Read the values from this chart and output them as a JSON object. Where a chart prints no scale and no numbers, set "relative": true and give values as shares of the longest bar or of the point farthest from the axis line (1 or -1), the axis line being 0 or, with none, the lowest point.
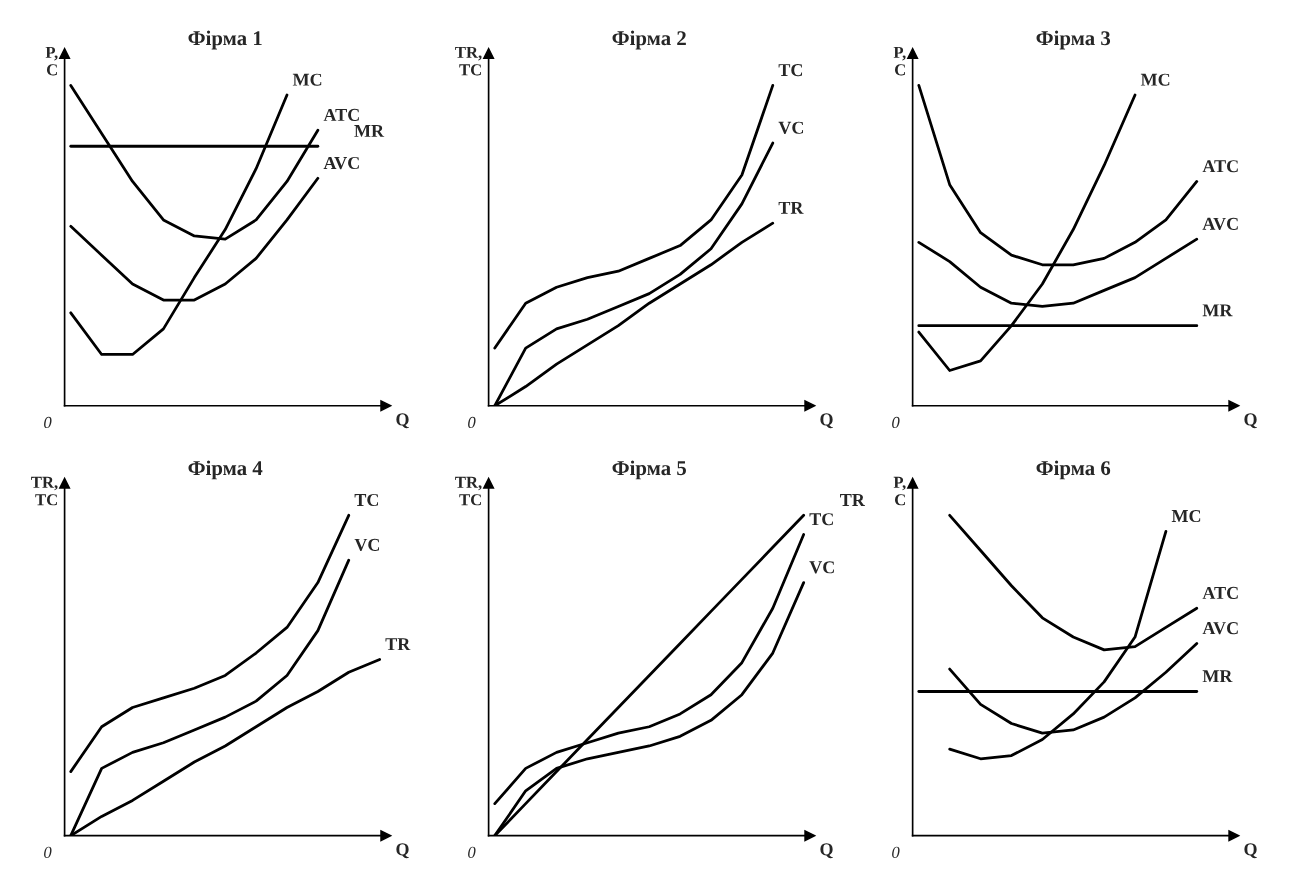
{
  "chart_data": [
    {
      "type": "line",
      "title": "Фірма 1",
      "ylabel": "P,\nC",
      "xlabel": "Q",
      "annotations": [
        "0"
      ],
      "relative": true,
      "categories": [
        null,
        null,
        null,
        null,
        null,
        null,
        null,
        null,
        null,
        null,
        null
      ],
      "series": [
        {
          "name": "MC",
          "color": "#000000",
          "values": [
            0.29,
            0.16,
            0.16,
            0.24,
            0.4,
            0.55,
            0.74,
            0.97,
            null,
            null,
            null
          ]
        },
        {
          "name": "ATC",
          "color": "#000000",
          "values": [
            1.0,
            0.85,
            0.7,
            0.58,
            0.53,
            0.52,
            0.58,
            0.7,
            0.86,
            null,
            null
          ]
        },
        {
          "name": "MR",
          "color": "#000000",
          "values": [
            0.81,
            0.81,
            0.81,
            0.81,
            0.81,
            0.81,
            0.81,
            0.81,
            0.81,
            null,
            null
          ]
        },
        {
          "name": "AVC",
          "color": "#000000",
          "values": [
            0.56,
            0.47,
            0.38,
            0.33,
            0.33,
            0.38,
            0.46,
            0.58,
            0.71,
            null,
            null
          ]
        }
      ]
    },
    {
      "type": "line",
      "title": "Фірма 2",
      "ylabel": "TR,\nTC",
      "xlabel": "Q",
      "annotations": [
        "0"
      ],
      "relative": true,
      "categories": [
        null,
        null,
        null,
        null,
        null,
        null,
        null,
        null,
        null,
        null,
        null
      ],
      "series": [
        {
          "name": "TC",
          "color": "#000000",
          "values": [
            0.18,
            0.32,
            0.37,
            0.4,
            0.42,
            0.46,
            0.5,
            0.58,
            0.72,
            1.0,
            null
          ]
        },
        {
          "name": "VC",
          "color": "#000000",
          "values": [
            0,
            0.18,
            0.24,
            0.27,
            0.31,
            0.35,
            0.41,
            0.49,
            0.63,
            0.82,
            null
          ]
        },
        {
          "name": "TR",
          "color": "#000000",
          "values": [
            0,
            0.06,
            0.13,
            0.19,
            0.25,
            0.32,
            0.38,
            0.44,
            0.51,
            0.57,
            null
          ]
        }
      ]
    },
    {
      "type": "line",
      "title": "Фірма 3",
      "ylabel": "P,\nC",
      "xlabel": "Q",
      "annotations": [
        "0"
      ],
      "relative": true,
      "categories": [
        null,
        null,
        null,
        null,
        null,
        null,
        null,
        null,
        null,
        null,
        null
      ],
      "series": [
        {
          "name": "MC",
          "color": "#000000",
          "values": [
            0.23,
            0.11,
            0.14,
            0.25,
            0.38,
            0.55,
            0.75,
            0.97,
            null,
            null,
            null
          ]
        },
        {
          "name": "ATC",
          "color": "#000000",
          "values": [
            1.0,
            0.69,
            0.54,
            0.47,
            0.44,
            0.44,
            0.46,
            0.51,
            0.58,
            0.7,
            null
          ]
        },
        {
          "name": "AVC",
          "color": "#000000",
          "values": [
            0.51,
            0.45,
            0.37,
            0.32,
            0.31,
            0.32,
            0.36,
            0.4,
            0.46,
            0.52,
            null
          ]
        },
        {
          "name": "MR",
          "color": "#000000",
          "values": [
            0.25,
            0.25,
            0.25,
            0.25,
            0.25,
            0.25,
            0.25,
            0.25,
            0.25,
            0.25,
            null
          ]
        }
      ]
    },
    {
      "type": "line",
      "title": "Фірма 4",
      "ylabel": "TR,\nTC",
      "xlabel": "Q",
      "annotations": [
        "0"
      ],
      "relative": true,
      "categories": [
        null,
        null,
        null,
        null,
        null,
        null,
        null,
        null,
        null,
        null,
        null
      ],
      "series": [
        {
          "name": "TC",
          "color": "#000000",
          "values": [
            0.2,
            0.34,
            0.4,
            0.43,
            0.46,
            0.5,
            0.57,
            0.65,
            0.79,
            1.0,
            null
          ]
        },
        {
          "name": "VC",
          "color": "#000000",
          "values": [
            0,
            0.21,
            0.26,
            0.29,
            0.33,
            0.37,
            0.42,
            0.5,
            0.64,
            0.86,
            null
          ]
        },
        {
          "name": "TR",
          "color": "#000000",
          "values": [
            0,
            0.06,
            0.11,
            0.17,
            0.23,
            0.28,
            0.34,
            0.4,
            0.45,
            0.51,
            0.55
          ]
        }
      ]
    },
    {
      "type": "line",
      "title": "Фірма 5",
      "ylabel": "TR,\nTC",
      "xlabel": "Q",
      "annotations": [
        "0"
      ],
      "relative": true,
      "categories": [
        null,
        null,
        null,
        null,
        null,
        null,
        null,
        null,
        null,
        null,
        null
      ],
      "series": [
        {
          "name": "TC",
          "color": "#000000",
          "values": [
            0.1,
            0.21,
            0.26,
            0.29,
            0.32,
            0.34,
            0.38,
            0.44,
            0.54,
            0.71,
            0.94
          ]
        },
        {
          "name": "TR",
          "color": "#000000",
          "values": [
            0,
            0.1,
            0.2,
            0.3,
            0.4,
            0.5,
            0.6,
            0.7,
            0.8,
            0.9,
            1.0
          ]
        },
        {
          "name": "VC",
          "color": "#000000",
          "values": [
            0,
            0.14,
            0.21,
            0.24,
            0.26,
            0.28,
            0.31,
            0.36,
            0.44,
            0.57,
            0.79
          ]
        }
      ]
    },
    {
      "type": "line",
      "title": "Фірма 6",
      "ylabel": "P,\nC",
      "xlabel": "Q",
      "annotations": [
        "0"
      ],
      "relative": true,
      "categories": [
        null,
        null,
        null,
        null,
        null,
        null,
        null,
        null,
        null,
        null,
        null
      ],
      "series": [
        {
          "name": "MC",
          "color": "#000000",
          "values": [
            null,
            0.27,
            0.24,
            0.25,
            0.3,
            0.38,
            0.48,
            0.62,
            0.95,
            null,
            null
          ]
        },
        {
          "name": "ATC",
          "color": "#000000",
          "values": [
            null,
            1.0,
            0.89,
            0.78,
            0.68,
            0.62,
            0.58,
            0.59,
            0.65,
            0.71,
            null
          ]
        },
        {
          "name": "AVC",
          "color": "#000000",
          "values": [
            null,
            0.52,
            0.41,
            0.35,
            0.32,
            0.33,
            0.37,
            0.43,
            0.51,
            0.6,
            null
          ]
        },
        {
          "name": "MR",
          "color": "#000000",
          "values": [
            0.45,
            0.45,
            0.45,
            0.45,
            0.45,
            0.45,
            0.45,
            0.45,
            0.45,
            0.45,
            null
          ]
        }
      ]
    }
  ]
}
